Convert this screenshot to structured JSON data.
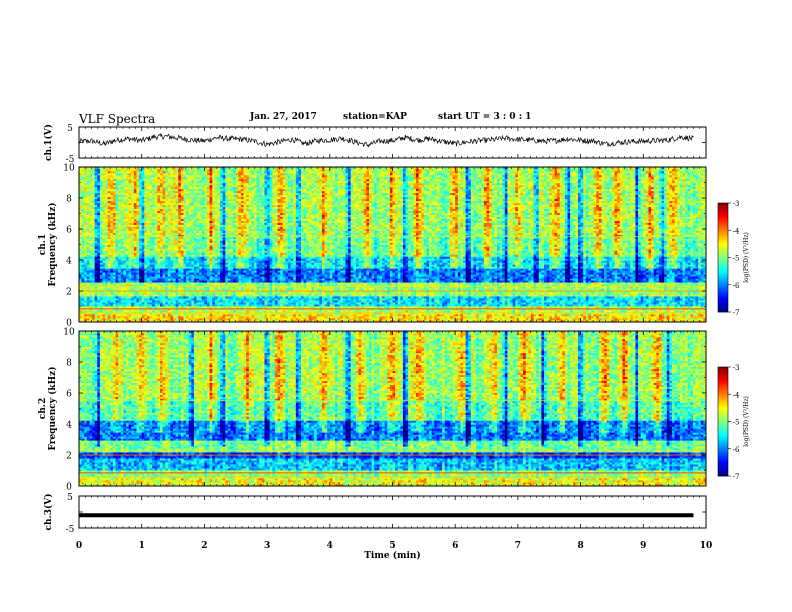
{
  "header": {
    "title": "VLF Spectra",
    "date": "Jan. 27, 2017",
    "station": "station=KAP",
    "start": "start UT = 3 : 0 : 1"
  },
  "colors": {
    "trace": "#000000",
    "colormap": [
      "#00007f",
      "#0000ff",
      "#007fff",
      "#00ffff",
      "#7fff7f",
      "#ffff00",
      "#ff7f00",
      "#ff0000",
      "#7f0000"
    ]
  },
  "chart_data": [
    {
      "type": "line",
      "panel": "ch1-waveform",
      "ylabel": "ch.1(V)",
      "ylim": [
        -5,
        5
      ],
      "yticks": [
        "5",
        "-5"
      ],
      "xlim": [
        0,
        10
      ],
      "series": [
        {
          "x": [
            0,
            0.2,
            0.4,
            0.6,
            0.8,
            1.0,
            1.2,
            1.4,
            1.6,
            1.8,
            2.0,
            2.2,
            2.4,
            2.6,
            2.8,
            3.0,
            3.2,
            3.4,
            3.6,
            3.8,
            4.0,
            4.2,
            4.4,
            4.6,
            4.8,
            5.0,
            5.2,
            5.4,
            5.6,
            5.8,
            6.0,
            6.2,
            6.4,
            6.6,
            6.8,
            7.0,
            7.2,
            7.4,
            7.6,
            7.8,
            8.0,
            8.2,
            8.4,
            8.6,
            8.8,
            9.0,
            9.2,
            9.4,
            9.6,
            9.8
          ],
          "y": [
            0.3,
            0.5,
            -0.5,
            0.8,
            1.2,
            0.6,
            1.8,
            2.0,
            1.4,
            0.8,
            0.5,
            1.6,
            1.2,
            1.0,
            0.4,
            -0.6,
            0.2,
            1.0,
            -0.4,
            0.6,
            0.8,
            1.4,
            0.2,
            -0.8,
            0.4,
            0.6,
            1.6,
            0.8,
            1.2,
            0.3,
            -0.4,
            0.2,
            0.6,
            0.9,
            1.4,
            1.0,
            0.8,
            0.4,
            0.6,
            1.2,
            0.7,
            0.5,
            -0.5,
            0.0,
            0.3,
            0.4,
            0.6,
            0.8,
            1.8,
            1.2
          ]
        }
      ]
    },
    {
      "type": "heatmap",
      "panel": "ch1-spectrogram",
      "ylabel": "ch.1 Frequency (kHz)",
      "ylim": [
        0,
        10
      ],
      "yticks": [
        "0",
        "2",
        "4",
        "6",
        "8",
        "10"
      ],
      "xlim": [
        0,
        10
      ],
      "colorbar": {
        "label": "log(PSD) (V²/Hz)",
        "range": [
          -7,
          -3
        ],
        "ticks": [
          "-3",
          "-4",
          "-5",
          "-6",
          "-7"
        ]
      },
      "bands": [
        {
          "f": [
            0.0,
            0.5
          ],
          "level": -4.4
        },
        {
          "f": [
            0.5,
            1.0
          ],
          "level": -4.8
        },
        {
          "f": [
            1.0,
            1.7
          ],
          "level": -5.6
        },
        {
          "f": [
            1.7,
            2.6
          ],
          "level": -4.9
        },
        {
          "f": [
            2.6,
            3.5
          ],
          "level": -6.0
        },
        {
          "f": [
            3.5,
            4.2
          ],
          "level": -5.6
        },
        {
          "f": [
            4.2,
            5.5
          ],
          "level": -5.1
        },
        {
          "f": [
            5.5,
            10.0
          ],
          "level": -4.9
        }
      ],
      "bursts_min": [
        0.5,
        0.9,
        1.3,
        1.6,
        2.1,
        2.6,
        3.2,
        3.9,
        4.6,
        5.0,
        5.4,
        6.0,
        6.5,
        7.0,
        7.6,
        8.3,
        8.6,
        9.1,
        9.5
      ],
      "quiet_min": [
        0.3,
        1.0,
        2.3,
        3.0,
        3.5,
        4.3,
        5.2,
        6.2,
        6.8,
        7.3,
        7.8,
        8.0,
        8.9,
        9.3
      ]
    },
    {
      "type": "heatmap",
      "panel": "ch2-spectrogram",
      "ylabel": "ch.2 Frequency (kHz)",
      "ylim": [
        0,
        10
      ],
      "yticks": [
        "0",
        "2",
        "4",
        "6",
        "8",
        "10"
      ],
      "xlim": [
        0,
        10
      ],
      "colorbar": {
        "label": "log(PSD) (V²/Hz)",
        "range": [
          -7,
          -3
        ],
        "ticks": [
          "-3",
          "-4",
          "-5",
          "-6",
          "-7"
        ]
      },
      "bands": [
        {
          "f": [
            0.0,
            0.5
          ],
          "level": -4.5
        },
        {
          "f": [
            0.5,
            1.0
          ],
          "level": -4.9
        },
        {
          "f": [
            1.0,
            1.8
          ],
          "level": -5.7
        },
        {
          "f": [
            1.8,
            2.2
          ],
          "level": -6.3
        },
        {
          "f": [
            2.2,
            3.0
          ],
          "level": -5.0
        },
        {
          "f": [
            3.0,
            4.2
          ],
          "level": -6.0
        },
        {
          "f": [
            4.2,
            5.5
          ],
          "level": -5.2
        },
        {
          "f": [
            5.5,
            10.0
          ],
          "level": -4.9
        }
      ],
      "bursts_min": [
        0.6,
        1.0,
        1.3,
        2.1,
        2.7,
        3.2,
        3.9,
        4.5,
        5.0,
        5.4,
        6.1,
        6.6,
        7.1,
        7.7,
        8.4,
        8.7,
        9.2
      ],
      "quiet_min": [
        0.3,
        1.8,
        2.3,
        3.0,
        3.5,
        4.3,
        5.2,
        6.2,
        6.8,
        7.4,
        8.0,
        8.9,
        9.4
      ]
    },
    {
      "type": "line",
      "panel": "ch3-waveform",
      "ylabel": "ch.3(V)",
      "ylim": [
        -5,
        5
      ],
      "yticks": [
        "5",
        "-5"
      ],
      "xlim": [
        0,
        10
      ],
      "xlabel": "Time (min)",
      "xticks": [
        "0",
        "1",
        "2",
        "3",
        "4",
        "5",
        "6",
        "7",
        "8",
        "9",
        "10"
      ],
      "series": [
        {
          "x": [
            0,
            9.8
          ],
          "y": [
            -1.0,
            -1.0
          ]
        }
      ]
    }
  ]
}
